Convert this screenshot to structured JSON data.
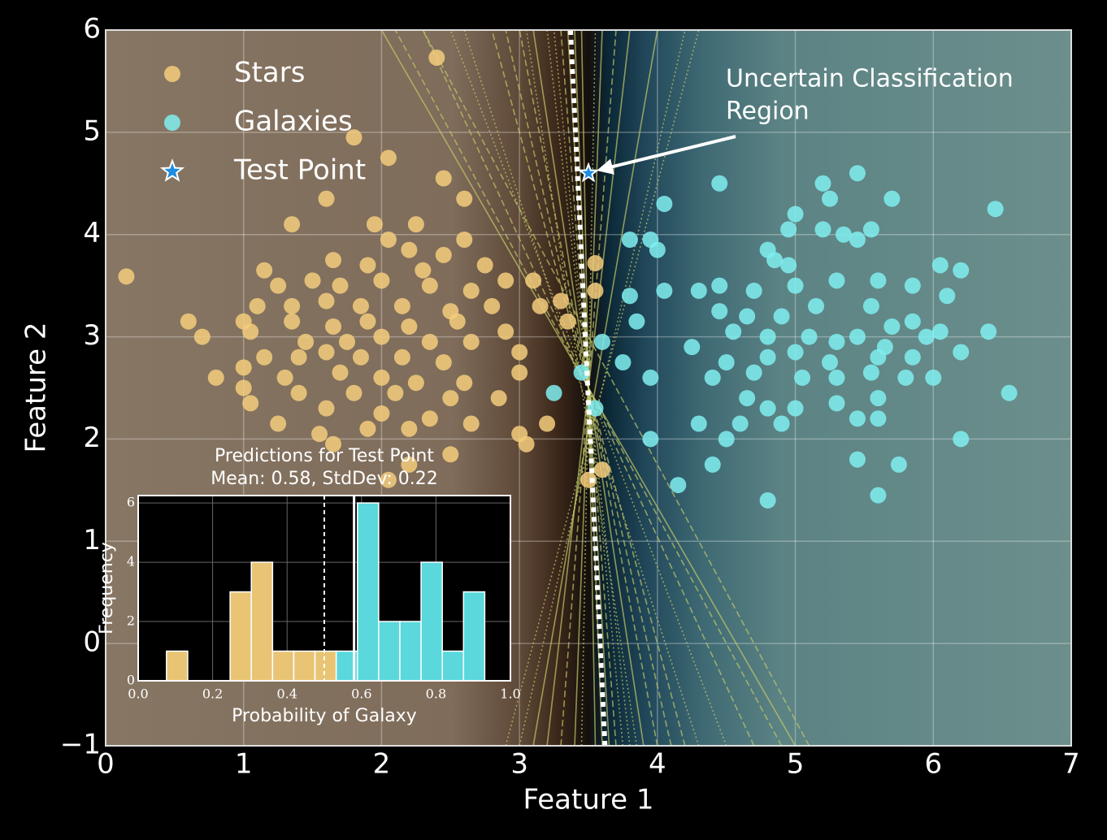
{
  "chart_data": {
    "type": "scatter",
    "xlabel": "Feature 1",
    "ylabel": "Feature 2",
    "xlim": [
      0,
      7
    ],
    "ylim": [
      -1,
      6
    ],
    "xticks": [
      0,
      1,
      2,
      3,
      4,
      5,
      6,
      7
    ],
    "yticks": [
      {
        "value": -1,
        "label": "−1"
      },
      0,
      1,
      2,
      3,
      4,
      5,
      6
    ],
    "grid": true,
    "legend": "upper left",
    "series": [
      {
        "name": "Stars",
        "color": "#f3cd7c",
        "x": [
          0.15,
          2.4,
          1.8,
          2.05,
          2.45,
          1.6,
          2.6,
          1.35,
          1.95,
          2.25,
          2.05,
          2.6,
          2.2,
          1.65,
          2.45,
          1.15,
          1.9,
          2.3,
          2.75,
          1.25,
          1.5,
          1.7,
          2.0,
          2.35,
          2.65,
          2.9,
          3.1,
          1.1,
          1.35,
          1.6,
          1.85,
          2.15,
          2.5,
          2.8,
          0.6,
          1.0,
          1.35,
          1.65,
          1.9,
          2.2,
          2.55,
          2.9,
          0.7,
          1.05,
          1.45,
          1.75,
          2.0,
          2.35,
          2.65,
          3.0,
          1.15,
          1.4,
          1.6,
          1.85,
          2.15,
          2.45,
          3.0,
          0.8,
          1.0,
          1.3,
          1.7,
          2.0,
          2.25,
          2.6,
          1.0,
          1.4,
          1.8,
          2.1,
          2.5,
          2.85,
          1.05,
          1.6,
          2.0,
          2.35,
          2.65,
          1.25,
          1.55,
          1.9,
          2.2,
          3.0,
          1.65,
          3.05,
          2.5,
          2.2,
          2.05,
          3.15,
          3.35,
          3.3,
          3.55,
          3.55,
          3.6,
          3.5,
          3.2
        ],
        "values": [
          3.59,
          5.73,
          4.95,
          4.75,
          4.55,
          4.35,
          4.35,
          4.1,
          4.1,
          4.1,
          3.95,
          3.95,
          3.85,
          3.75,
          3.8,
          3.65,
          3.7,
          3.65,
          3.7,
          3.5,
          3.55,
          3.5,
          3.55,
          3.5,
          3.45,
          3.55,
          3.55,
          3.3,
          3.3,
          3.35,
          3.3,
          3.3,
          3.25,
          3.3,
          3.15,
          3.15,
          3.15,
          3.1,
          3.15,
          3.1,
          3.15,
          3.05,
          3.0,
          3.05,
          2.95,
          2.95,
          3.0,
          2.95,
          2.95,
          2.85,
          2.8,
          2.8,
          2.85,
          2.8,
          2.8,
          2.75,
          2.65,
          2.6,
          2.7,
          2.6,
          2.65,
          2.6,
          2.55,
          2.55,
          2.5,
          2.45,
          2.45,
          2.45,
          2.4,
          2.4,
          2.35,
          2.3,
          2.25,
          2.2,
          2.15,
          2.15,
          2.05,
          2.1,
          2.1,
          2.05,
          1.95,
          1.95,
          1.85,
          1.75,
          1.6,
          3.3,
          3.15,
          3.35,
          3.72,
          3.45,
          1.7,
          1.6,
          2.15
        ]
      },
      {
        "name": "Galaxies",
        "color": "#80eef0",
        "x": [
          4.05,
          4.45,
          5.45,
          5.2,
          5.7,
          5.25,
          6.45,
          5.0,
          4.95,
          5.2,
          5.55,
          5.45,
          3.8,
          3.95,
          4.0,
          4.8,
          5.35,
          4.85,
          4.95,
          6.05,
          6.2,
          4.05,
          4.3,
          4.45,
          4.7,
          5.0,
          5.3,
          5.6,
          5.85,
          6.1,
          3.8,
          4.45,
          4.65,
          4.9,
          5.15,
          5.55,
          5.7,
          5.85,
          6.05,
          3.85,
          4.55,
          4.8,
          5.1,
          5.3,
          5.45,
          5.65,
          5.95,
          6.4,
          3.6,
          3.75,
          4.25,
          4.5,
          4.8,
          5.0,
          5.25,
          5.6,
          5.85,
          6.2,
          3.45,
          3.95,
          4.4,
          4.7,
          5.05,
          5.3,
          5.55,
          5.8,
          6.0,
          3.25,
          3.55,
          4.65,
          4.8,
          5.0,
          5.3,
          5.6,
          6.55,
          4.6,
          4.3,
          4.9,
          5.45,
          5.6,
          3.95,
          4.5,
          4.4,
          5.45,
          5.75,
          6.2,
          4.15,
          4.8,
          5.6
        ],
        "values": [
          4.3,
          4.5,
          4.6,
          4.5,
          4.35,
          4.35,
          4.25,
          4.2,
          4.05,
          4.05,
          4.05,
          3.95,
          3.95,
          3.95,
          3.85,
          3.85,
          4.0,
          3.75,
          3.7,
          3.7,
          3.65,
          3.45,
          3.45,
          3.5,
          3.45,
          3.5,
          3.55,
          3.55,
          3.5,
          3.4,
          3.4,
          3.25,
          3.2,
          3.2,
          3.3,
          3.3,
          3.1,
          3.15,
          3.05,
          3.15,
          3.05,
          3.0,
          3.0,
          2.95,
          3.0,
          2.9,
          3.0,
          3.05,
          2.95,
          2.75,
          2.9,
          2.75,
          2.8,
          2.85,
          2.75,
          2.8,
          2.8,
          2.85,
          2.65,
          2.6,
          2.6,
          2.65,
          2.6,
          2.6,
          2.65,
          2.6,
          2.6,
          2.45,
          2.3,
          2.4,
          2.3,
          2.3,
          2.35,
          2.4,
          2.45,
          2.15,
          2.15,
          2.15,
          2.2,
          2.2,
          2.0,
          2.0,
          1.75,
          1.8,
          1.75,
          2.0,
          1.55,
          1.4,
          1.45
        ]
      },
      {
        "name": "Test Point",
        "color": "#1e8ce0",
        "x": [
          3.5
        ],
        "values": [
          4.6
        ]
      }
    ],
    "boundary_x": [
      3.62,
      3.37
    ],
    "ensemble_boundaries": [
      [
        4.0,
        3.0
      ],
      [
        3.9,
        3.1
      ],
      [
        4.3,
        2.6
      ],
      [
        4.7,
        2.3
      ],
      [
        3.2,
        3.8
      ],
      [
        3.0,
        4.2
      ],
      [
        3.7,
        3.3
      ],
      [
        3.6,
        3.4
      ],
      [
        4.5,
        2.5
      ],
      [
        3.3,
        3.7
      ],
      [
        5.0,
        2.0
      ],
      [
        3.8,
        3.2
      ],
      [
        4.1,
        2.9
      ],
      [
        3.55,
        3.45
      ],
      [
        2.9,
        4.3
      ],
      [
        4.9,
        2.1
      ],
      [
        3.4,
        3.6
      ],
      [
        3.75,
        3.25
      ],
      [
        5.1,
        2.3
      ],
      [
        3.65,
        3.35
      ],
      [
        3.85,
        3.05
      ],
      [
        4.2,
        2.8
      ],
      [
        3.1,
        4.0
      ],
      [
        3.45,
        3.55
      ]
    ],
    "annotation": [
      "Uncertain Classification",
      "Region"
    ],
    "inset": {
      "type": "histogram",
      "title": "Predictions for Test Point",
      "subtitle": "Mean: 0.58, StdDev: 0.22",
      "xlabel": "Probability of Galaxy",
      "ylabel": "Frequency",
      "bins": [
        0.076,
        0.133,
        0.19,
        0.247,
        0.304,
        0.361,
        0.418,
        0.475,
        0.532,
        0.589,
        0.646,
        0.703,
        0.76,
        0.817,
        0.874,
        0.931
      ],
      "values": [
        1,
        0,
        0,
        3,
        4,
        1,
        1,
        1,
        1,
        6,
        2,
        2,
        4,
        1,
        3
      ],
      "colors": [
        "#e8c474",
        "#e8c474",
        "#e8c474",
        "#e8c474",
        "#e8c474",
        "#e8c474",
        "#e8c474",
        "#e8c474",
        "#5ad8dc",
        "#5ad8dc",
        "#5ad8dc",
        "#5ad8dc",
        "#5ad8dc",
        "#5ad8dc",
        "#5ad8dc"
      ],
      "xlim": [
        0,
        1
      ],
      "ylim": [
        0,
        6.25
      ],
      "xticks": [
        {
          "value": 0,
          "label": "0.0"
        },
        0.2,
        0.4,
        0.6,
        0.8,
        {
          "value": 1,
          "label": "1.0"
        }
      ],
      "yticks": [
        0,
        2,
        4,
        6
      ],
      "threshold_line": 0.5,
      "mean_line": 0.58,
      "grid": true
    }
  }
}
